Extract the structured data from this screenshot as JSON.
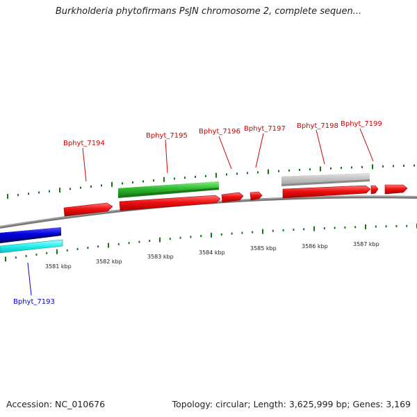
{
  "title": "Burkholderia phytofirmans PsJN chromosome 2, complete sequen...",
  "footer": {
    "accession": "Accession: NC_010676",
    "summary": "Topology: circular; Length: 3,625,999 bp; Genes: 3,169"
  },
  "colors": {
    "plus_strand_gene": "#ee1111",
    "green_feature": "#33bb33",
    "gray_feature": "#bbbbbb",
    "blue_feature": "#0000dd",
    "cyan_feature": "#22eeee",
    "backbone": "#888888",
    "tick": "#117711",
    "label_plus": "#cc0000",
    "label_minus": "#0000cc"
  },
  "scale": {
    "unit": "kbp",
    "ticks": [
      {
        "label": "3581 kbp"
      },
      {
        "label": "3582 kbp"
      },
      {
        "label": "3583 kbp"
      },
      {
        "label": "3584 kbp"
      },
      {
        "label": "3585 kbp"
      },
      {
        "label": "3586 kbp"
      },
      {
        "label": "3587 kbp"
      }
    ]
  },
  "gene_labels": [
    {
      "id": "Bphyt_7193",
      "strand": "minus"
    },
    {
      "id": "Bphyt_7194",
      "strand": "plus"
    },
    {
      "id": "Bphyt_7195",
      "strand": "plus"
    },
    {
      "id": "Bphyt_7196",
      "strand": "plus"
    },
    {
      "id": "Bphyt_7197",
      "strand": "plus"
    },
    {
      "id": "Bphyt_7198",
      "strand": "plus"
    },
    {
      "id": "Bphyt_7199",
      "strand": "plus"
    }
  ]
}
